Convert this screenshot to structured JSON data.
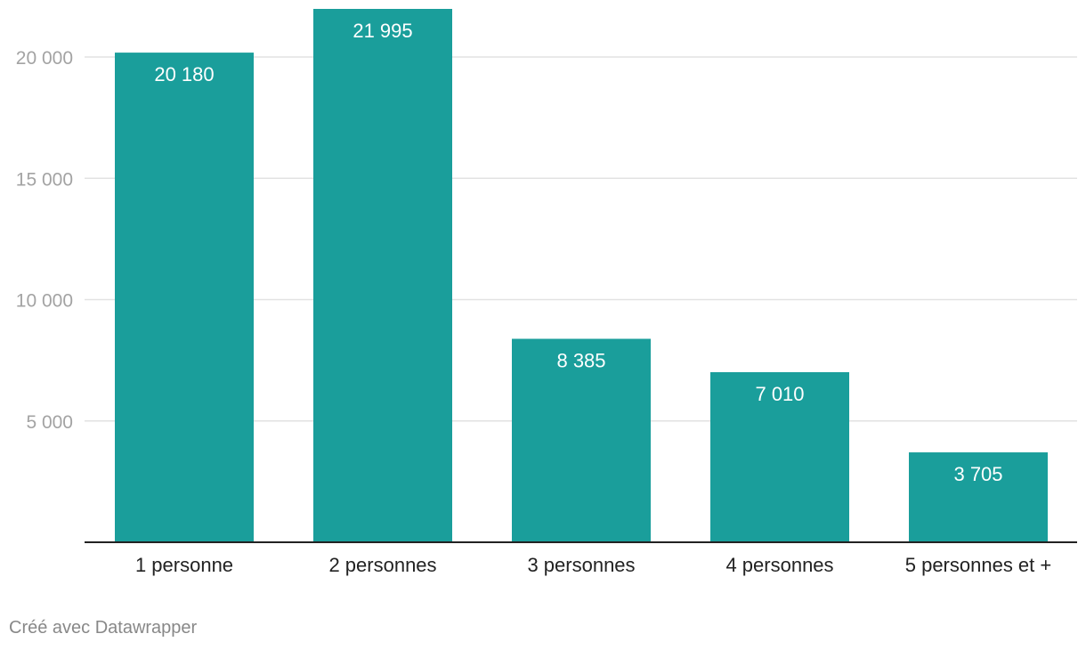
{
  "chart_data": {
    "type": "bar",
    "categories": [
      "1 personne",
      "2 personnes",
      "3 personnes",
      "4 personnes",
      "5 personnes et +"
    ],
    "values": [
      20180,
      21995,
      8385,
      7010,
      3705
    ],
    "value_labels": [
      "20 180",
      "21 995",
      "8 385",
      "7 010",
      "3 705"
    ],
    "yticks": [
      5000,
      10000,
      15000,
      20000
    ],
    "ytick_labels": [
      "5 000",
      "10 000",
      "15 000",
      "20 000"
    ],
    "ylim": [
      0,
      22000
    ],
    "grid": true,
    "bar_color": "#1a9e9b",
    "title": "",
    "xlabel": "",
    "ylabel": ""
  },
  "footer": {
    "credit": "Créé avec Datawrapper"
  }
}
